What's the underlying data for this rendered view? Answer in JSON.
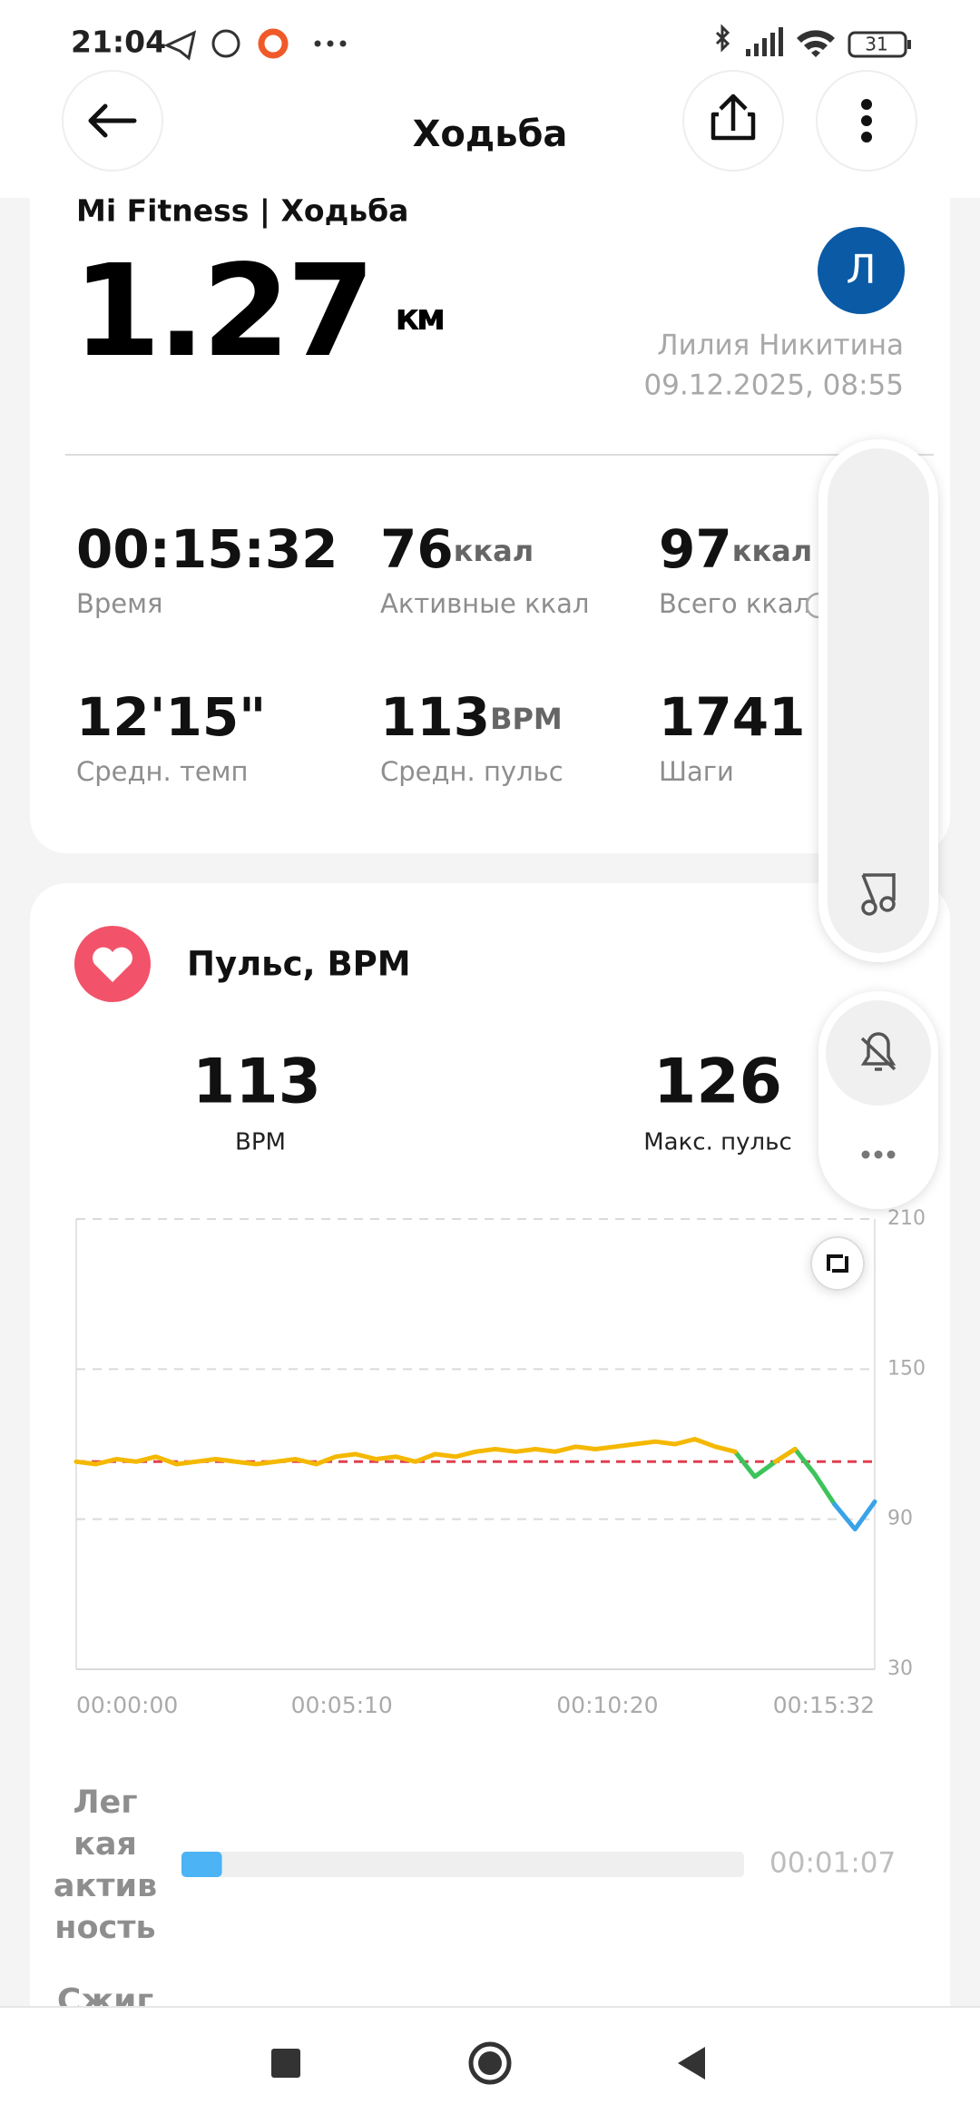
{
  "status_bar": {
    "time": "21:04",
    "battery": "31"
  },
  "header": {
    "title": "Ходьба"
  },
  "summary": {
    "source": "Mi Fitness | Ходьба",
    "distance": "1.27",
    "distance_unit": "км",
    "avatar": "Л",
    "user": "Лилия Никитина",
    "datetime": "09.12.2025, 08:55",
    "stats": [
      {
        "value": "00:15:32",
        "label": "Время"
      },
      {
        "value": "76",
        "unit": "ккал",
        "label": "Активные ккал"
      },
      {
        "value": "97",
        "unit": "ккал",
        "label": "Всего ккал"
      },
      {
        "value": "12'15\"",
        "label": "Средн. темп"
      },
      {
        "value": "113",
        "unit": "BPM",
        "label": "Средн. пульс"
      },
      {
        "value": "1741",
        "label": "Шаги"
      }
    ]
  },
  "heart": {
    "title": "Пульс, BPM",
    "avg": {
      "value": 113,
      "label": "BPM"
    },
    "max": {
      "value": 126,
      "label": "Макс. пульс"
    }
  },
  "chart_data": {
    "type": "line",
    "x": [
      0,
      23,
      47,
      70,
      93,
      117,
      140,
      163,
      186,
      210,
      233,
      256,
      280,
      303,
      326,
      350,
      373,
      396,
      419,
      443,
      466,
      489,
      513,
      536,
      559,
      583,
      606,
      629,
      652,
      676,
      699,
      722,
      746,
      769,
      792,
      816,
      839,
      862,
      885,
      909,
      932
    ],
    "series": [
      {
        "color": "#3cc45a",
        "values": [
          null,
          null,
          null,
          null,
          null,
          null,
          null,
          null,
          null,
          null,
          null,
          null,
          null,
          null,
          null,
          null,
          null,
          null,
          null,
          null,
          null,
          null,
          null,
          null,
          null,
          null,
          null,
          null,
          null,
          null,
          null,
          null,
          null,
          117,
          107,
          113,
          118,
          108,
          96,
          null,
          null
        ]
      },
      {
        "color": "#3aa3e8",
        "values": [
          null,
          null,
          null,
          null,
          null,
          null,
          null,
          null,
          null,
          null,
          null,
          null,
          null,
          null,
          null,
          null,
          null,
          null,
          null,
          null,
          null,
          null,
          null,
          null,
          null,
          null,
          null,
          null,
          null,
          null,
          null,
          null,
          null,
          null,
          null,
          null,
          null,
          null,
          96,
          86,
          97
        ]
      },
      {
        "color": "#f5b800",
        "values": [
          113,
          112,
          114,
          113,
          115,
          112,
          113,
          114,
          113,
          112,
          113,
          114,
          112,
          115,
          116,
          114,
          115,
          113,
          116,
          115,
          117,
          118,
          117,
          118,
          117,
          119,
          118,
          119,
          120,
          121,
          120,
          122,
          119,
          117,
          null,
          113,
          118,
          null,
          null,
          null,
          null
        ]
      }
    ],
    "xlim": [
      0,
      932
    ],
    "xticks": [
      {
        "value": 0,
        "label": "00:00:00"
      },
      {
        "value": 310,
        "label": "00:05:10"
      },
      {
        "value": 620,
        "label": "00:10:20"
      },
      {
        "value": 932,
        "label": "00:15:32"
      }
    ],
    "ylim": [
      30,
      210
    ],
    "yticks": [
      30,
      90,
      150,
      210
    ],
    "grid": true,
    "reference_color": "#e04050"
  },
  "zones": [
    {
      "name_lines": [
        "Лег",
        "кая",
        "актив",
        "ность"
      ],
      "duration": "00:01:07",
      "color": "#4cb3f5"
    }
  ],
  "next_zone": "Сжиг"
}
